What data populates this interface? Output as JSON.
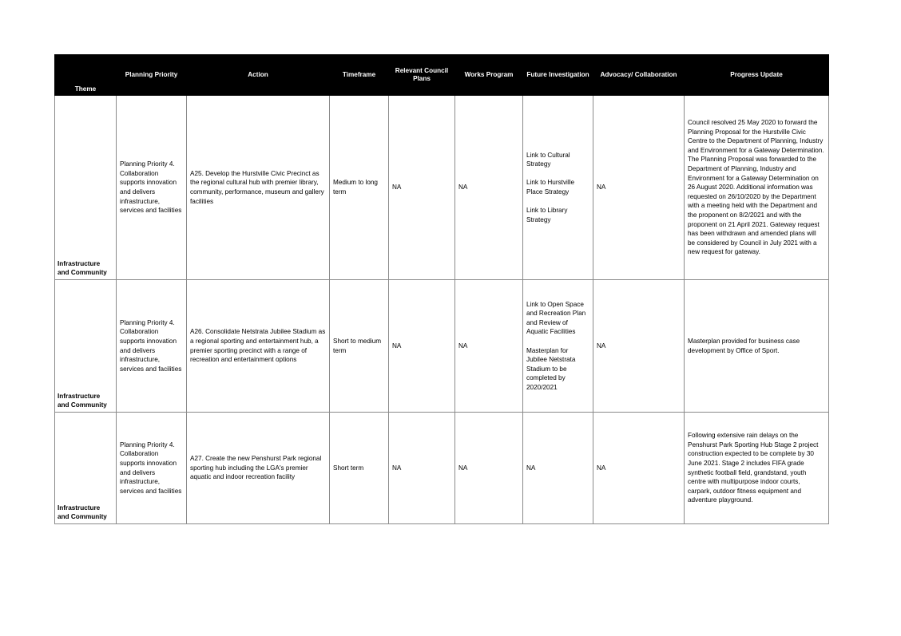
{
  "table": {
    "headers": {
      "theme": "Theme",
      "planning_priority": "Planning Priority",
      "action": "Action",
      "timeframe": "Timeframe",
      "relevant_council_plans": "Relevant Council Plans",
      "works_program": "Works Program",
      "future_investigation": "Future Investigation",
      "advocacy_collaboration": "Advocacy/ Collaboration",
      "progress_update": "Progress Update"
    },
    "rows": [
      {
        "theme": "Infrastructure and Community",
        "planning_priority": "Planning Priority 4. Collaboration supports innovation and delivers infrastructure, services and facilities",
        "action": "A25. Develop the Hurstville Civic Precinct as the regional cultural hub with premier library, community, performance, museum and gallery facilities",
        "timeframe": "Medium to long term",
        "relevant_council_plans": "NA",
        "works_program": "NA",
        "future_investigation": [
          "Link to Cultural Strategy",
          "Link to Hurstville Place Strategy",
          "Link to Library Strategy"
        ],
        "advocacy_collaboration": "NA",
        "progress_update": "Council resolved 25 May 2020 to forward the Planning Proposal for the Hurstville Civic Centre to the Department of Planning, Industry and Environment for a Gateway Determination. The Planning Proposal was forwarded to the Department of Planning, Industry and Environment for a Gateway Determination on 26 August 2020. Additional information was requested on 26/10/2020 by the Department with a meeting held with the Department and the proponent on 8/2/2021 and with the proponent on 21 April 2021. Gateway request has been withdrawn and amended plans will be considered by Council in July 2021 with a new request for gateway."
      },
      {
        "theme": "Infrastructure and Community",
        "planning_priority": "Planning Priority 4. Collaboration supports innovation and delivers infrastructure, services and facilities",
        "action": "A26. Consolidate Netstrata Jubilee Stadium as a regional sporting and entertainment hub, a premier sporting precinct with a range of recreation and entertainment options",
        "timeframe": "Short to medium term",
        "relevant_council_plans": "NA",
        "works_program": "NA",
        "future_investigation": [
          "Link to Open Space and Recreation Plan and Review of Aquatic Facilities",
          "Masterplan for Jubilee Netstrata Stadium to be completed by 2020/2021"
        ],
        "advocacy_collaboration": "NA",
        "progress_update": "Masterplan provided for business case development by Office of Sport."
      },
      {
        "theme": "Infrastructure and Community",
        "planning_priority": "Planning Priority 4. Collaboration supports innovation and delivers infrastructure, services and facilities",
        "action": "A27. Create the new Penshurst Park regional sporting hub including the LGA's premier aquatic and indoor recreation facility",
        "timeframe": "Short term",
        "relevant_council_plans": "NA",
        "works_program": "NA",
        "future_investigation": [
          "NA"
        ],
        "advocacy_collaboration": "NA",
        "progress_update": "Following extensive rain delays on the Penshurst Park Sporting Hub Stage 2 project construction expected to be complete by 30 June 2021. Stage 2 includes FIFA grade synthetic football field, grandstand, youth centre with multipurpose indoor courts, carpark, outdoor fitness equipment and adventure playground."
      }
    ]
  }
}
